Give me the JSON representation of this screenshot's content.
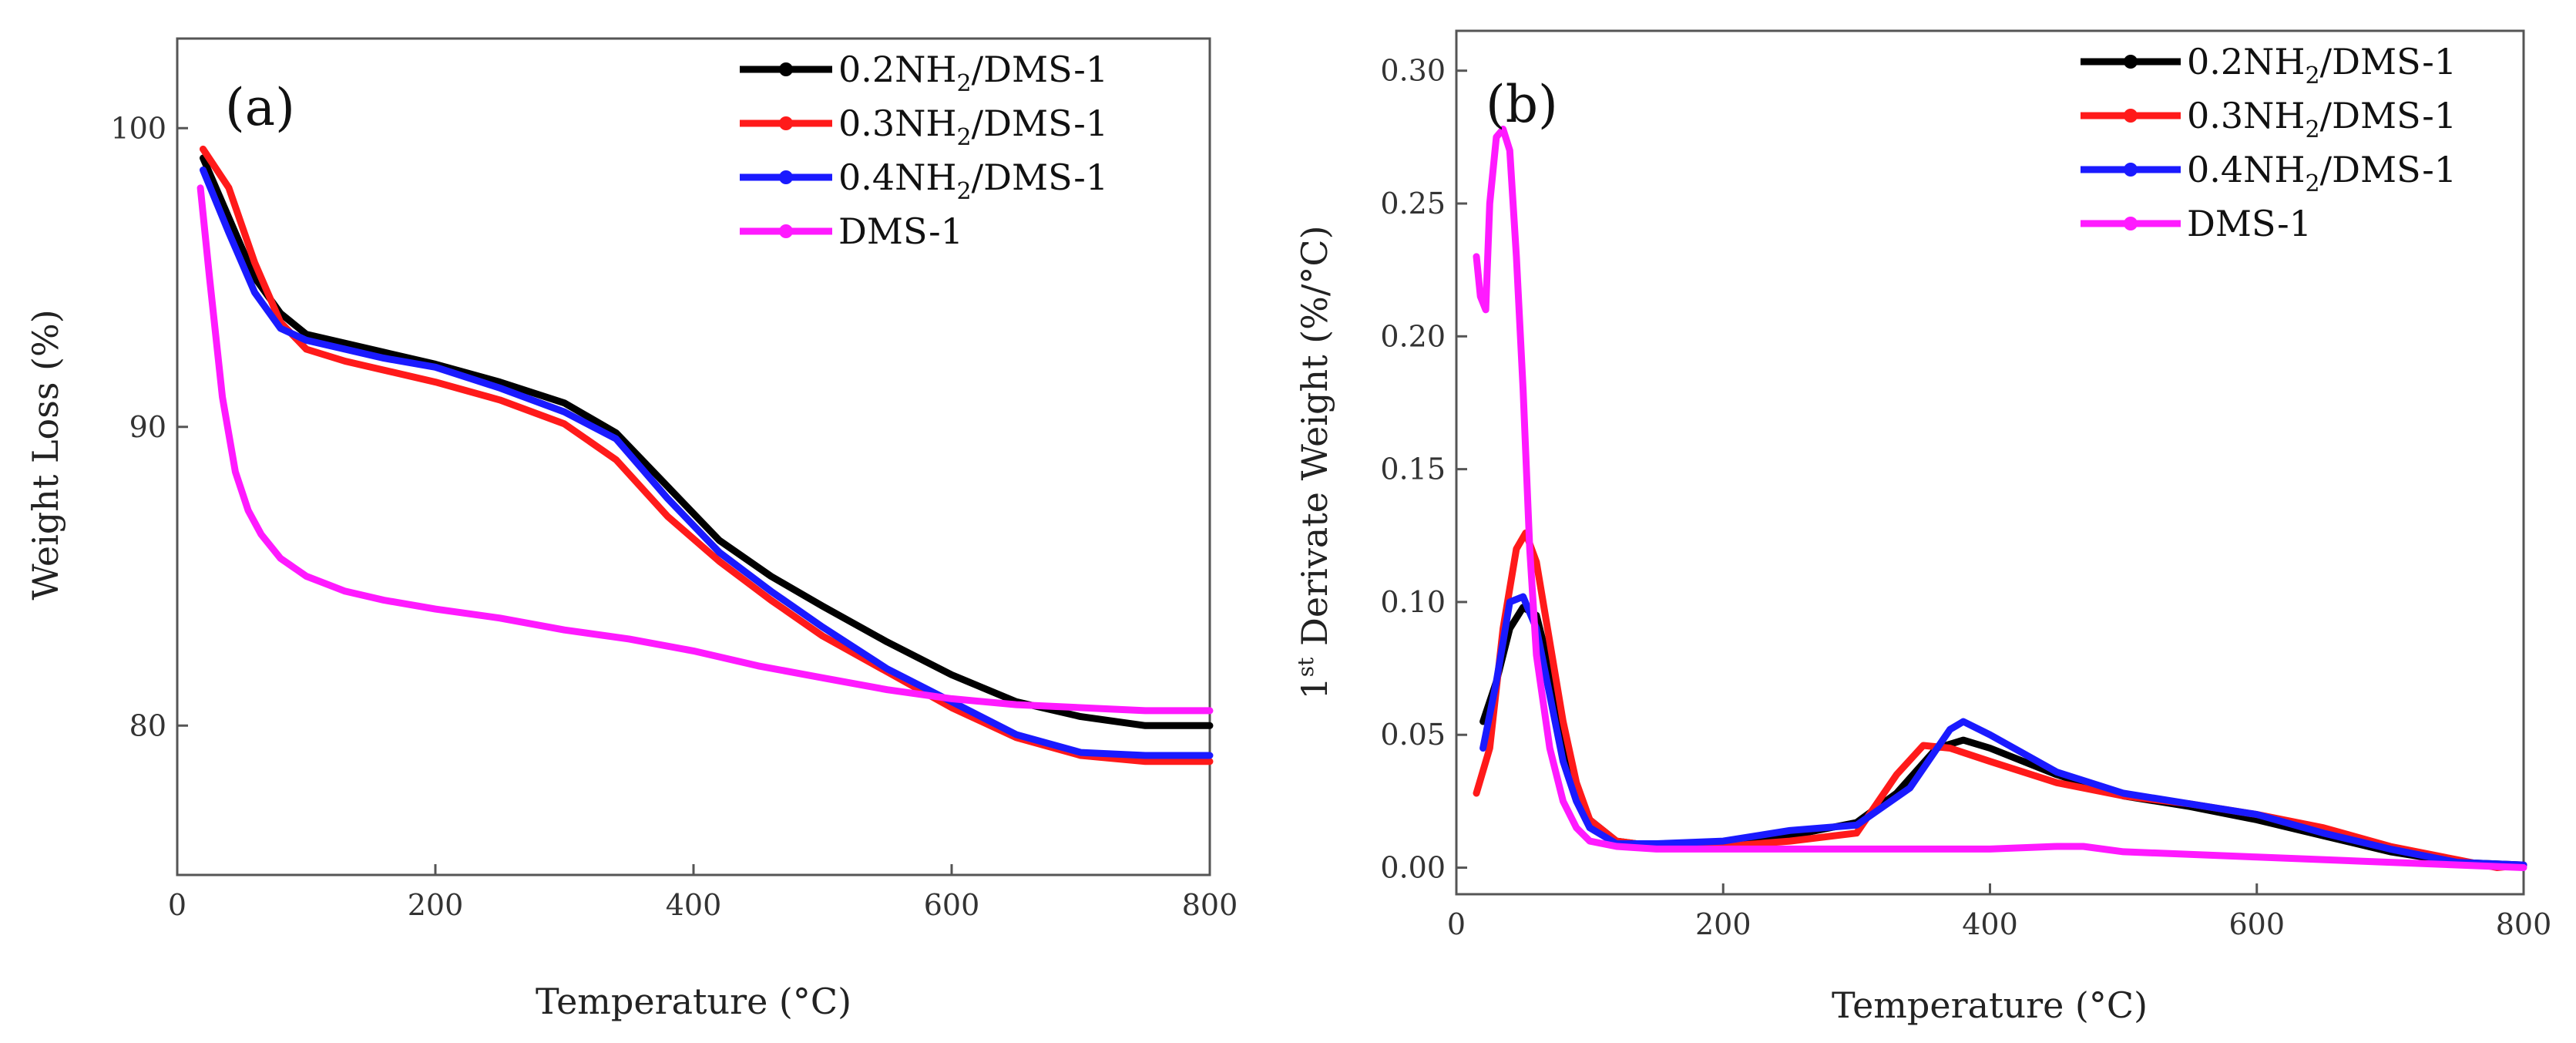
{
  "colors": {
    "0.2NH2/DMS-1": "#000000",
    "0.3NH2/DMS-1": "#ff1a1a",
    "0.4NH2/DMS-1": "#1a1aff",
    "DMS-1": "#ff1aff"
  },
  "chart_data": [
    {
      "type": "line",
      "panel": "(a)",
      "title": "",
      "xlabel": "Temperature (°C)",
      "ylabel": "Weight Loss (%)",
      "xlim": [
        0,
        800
      ],
      "ylim": [
        75,
        103
      ],
      "xticks": [
        0,
        200,
        400,
        600,
        800
      ],
      "yticks": [
        80,
        90,
        100
      ],
      "legend": {
        "position": "top-right",
        "entries": [
          {
            "pre": "0.2NH",
            "sub": "2",
            "post": "/DMS-1"
          },
          {
            "pre": "0.3NH",
            "sub": "2",
            "post": "/DMS-1"
          },
          {
            "pre": "0.4NH",
            "sub": "2",
            "post": "/DMS-1"
          },
          {
            "pre": "DMS-1",
            "sub": "",
            "post": ""
          }
        ]
      },
      "series": [
        {
          "name": "0.2NH2/DMS-1",
          "x": [
            20,
            40,
            60,
            80,
            100,
            130,
            160,
            200,
            250,
            300,
            340,
            380,
            420,
            460,
            500,
            550,
            600,
            650,
            700,
            750,
            800
          ],
          "y": [
            99.0,
            97.0,
            95.0,
            93.8,
            93.1,
            92.8,
            92.5,
            92.1,
            91.5,
            90.8,
            89.8,
            88.0,
            86.2,
            85.0,
            84.0,
            82.8,
            81.7,
            80.8,
            80.3,
            80.0,
            80.0
          ]
        },
        {
          "name": "0.3NH2/DMS-1",
          "x": [
            20,
            40,
            60,
            80,
            100,
            130,
            160,
            200,
            250,
            300,
            340,
            380,
            420,
            460,
            500,
            550,
            600,
            650,
            700,
            750,
            800
          ],
          "y": [
            99.3,
            98.0,
            95.5,
            93.5,
            92.6,
            92.2,
            91.9,
            91.5,
            90.9,
            90.1,
            88.9,
            87.0,
            85.5,
            84.2,
            83.0,
            81.8,
            80.6,
            79.6,
            79.0,
            78.8,
            78.8
          ]
        },
        {
          "name": "0.4NH2/DMS-1",
          "x": [
            20,
            40,
            60,
            80,
            100,
            130,
            160,
            200,
            250,
            300,
            340,
            380,
            420,
            460,
            500,
            550,
            600,
            650,
            700,
            750,
            800
          ],
          "y": [
            98.6,
            96.5,
            94.5,
            93.3,
            92.9,
            92.6,
            92.3,
            92.0,
            91.3,
            90.5,
            89.6,
            87.6,
            85.8,
            84.5,
            83.3,
            81.9,
            80.8,
            79.7,
            79.1,
            79.0,
            79.0
          ]
        },
        {
          "name": "DMS-1",
          "x": [
            18,
            25,
            35,
            45,
            55,
            65,
            80,
            100,
            130,
            160,
            200,
            250,
            300,
            350,
            400,
            450,
            500,
            550,
            600,
            650,
            700,
            750,
            800
          ],
          "y": [
            98.0,
            95.0,
            91.0,
            88.5,
            87.2,
            86.4,
            85.6,
            85.0,
            84.5,
            84.2,
            83.9,
            83.6,
            83.2,
            82.9,
            82.5,
            82.0,
            81.6,
            81.2,
            80.9,
            80.7,
            80.6,
            80.5,
            80.5
          ]
        }
      ]
    },
    {
      "type": "line",
      "panel": "(b)",
      "title": "",
      "xlabel": "Temperature (°C)",
      "ylabel": "1st Derivate Weight (%/°C)",
      "ylabel_parts": {
        "num": "1",
        "sup": "st",
        "rest": " Derivate Weight (%/°C)"
      },
      "xlim": [
        0,
        800
      ],
      "ylim": [
        -0.01,
        0.315
      ],
      "xticks": [
        0,
        200,
        400,
        600,
        800
      ],
      "yticks": [
        0.0,
        0.05,
        0.1,
        0.15,
        0.2,
        0.25,
        0.3
      ],
      "ytick_labels": [
        "0.00",
        "0.05",
        "0.10",
        "0.15",
        "0.20",
        "0.25",
        "0.30"
      ],
      "legend": {
        "position": "top-right",
        "entries": [
          {
            "pre": "0.2NH",
            "sub": "2",
            "post": "/DMS-1"
          },
          {
            "pre": "0.3NH",
            "sub": "2",
            "post": "/DMS-1"
          },
          {
            "pre": "0.4NH",
            "sub": "2",
            "post": "/DMS-1"
          },
          {
            "pre": "DMS-1",
            "sub": "",
            "post": ""
          }
        ]
      },
      "series": [
        {
          "name": "0.2NH2/DMS-1",
          "x": [
            20,
            30,
            40,
            50,
            60,
            70,
            80,
            90,
            100,
            120,
            150,
            200,
            250,
            300,
            330,
            360,
            380,
            400,
            450,
            500,
            550,
            600,
            650,
            700,
            750,
            800
          ],
          "y": [
            0.055,
            0.07,
            0.09,
            0.098,
            0.095,
            0.075,
            0.05,
            0.03,
            0.018,
            0.01,
            0.008,
            0.009,
            0.012,
            0.017,
            0.028,
            0.045,
            0.048,
            0.045,
            0.035,
            0.027,
            0.023,
            0.018,
            0.012,
            0.006,
            0.002,
            0.001
          ]
        },
        {
          "name": "0.3NH2/DMS-1",
          "x": [
            15,
            25,
            35,
            45,
            52,
            60,
            70,
            80,
            90,
            100,
            120,
            150,
            200,
            250,
            300,
            330,
            350,
            370,
            400,
            450,
            500,
            550,
            600,
            650,
            700,
            750,
            780,
            800
          ],
          "y": [
            0.028,
            0.045,
            0.09,
            0.12,
            0.126,
            0.115,
            0.085,
            0.055,
            0.032,
            0.018,
            0.01,
            0.008,
            0.008,
            0.01,
            0.013,
            0.035,
            0.046,
            0.045,
            0.04,
            0.032,
            0.027,
            0.024,
            0.02,
            0.015,
            0.008,
            0.003,
            0.0,
            0.001
          ]
        },
        {
          "name": "0.4NH2/DMS-1",
          "x": [
            20,
            30,
            40,
            50,
            60,
            70,
            80,
            90,
            100,
            120,
            150,
            200,
            250,
            300,
            340,
            370,
            380,
            400,
            450,
            500,
            550,
            600,
            650,
            700,
            750,
            800
          ],
          "y": [
            0.045,
            0.07,
            0.1,
            0.102,
            0.09,
            0.065,
            0.04,
            0.025,
            0.015,
            0.009,
            0.009,
            0.01,
            0.014,
            0.016,
            0.03,
            0.052,
            0.055,
            0.05,
            0.036,
            0.028,
            0.024,
            0.02,
            0.013,
            0.007,
            0.002,
            0.001
          ]
        },
        {
          "name": "DMS-1",
          "x": [
            15,
            18,
            22,
            25,
            30,
            35,
            40,
            45,
            50,
            55,
            60,
            70,
            80,
            90,
            100,
            120,
            150,
            200,
            300,
            400,
            450,
            470,
            500,
            600,
            700,
            800
          ],
          "y": [
            0.23,
            0.215,
            0.21,
            0.25,
            0.275,
            0.278,
            0.27,
            0.23,
            0.18,
            0.12,
            0.08,
            0.045,
            0.025,
            0.015,
            0.01,
            0.008,
            0.007,
            0.007,
            0.007,
            0.007,
            0.008,
            0.008,
            0.006,
            0.004,
            0.002,
            0.0
          ]
        }
      ]
    }
  ]
}
